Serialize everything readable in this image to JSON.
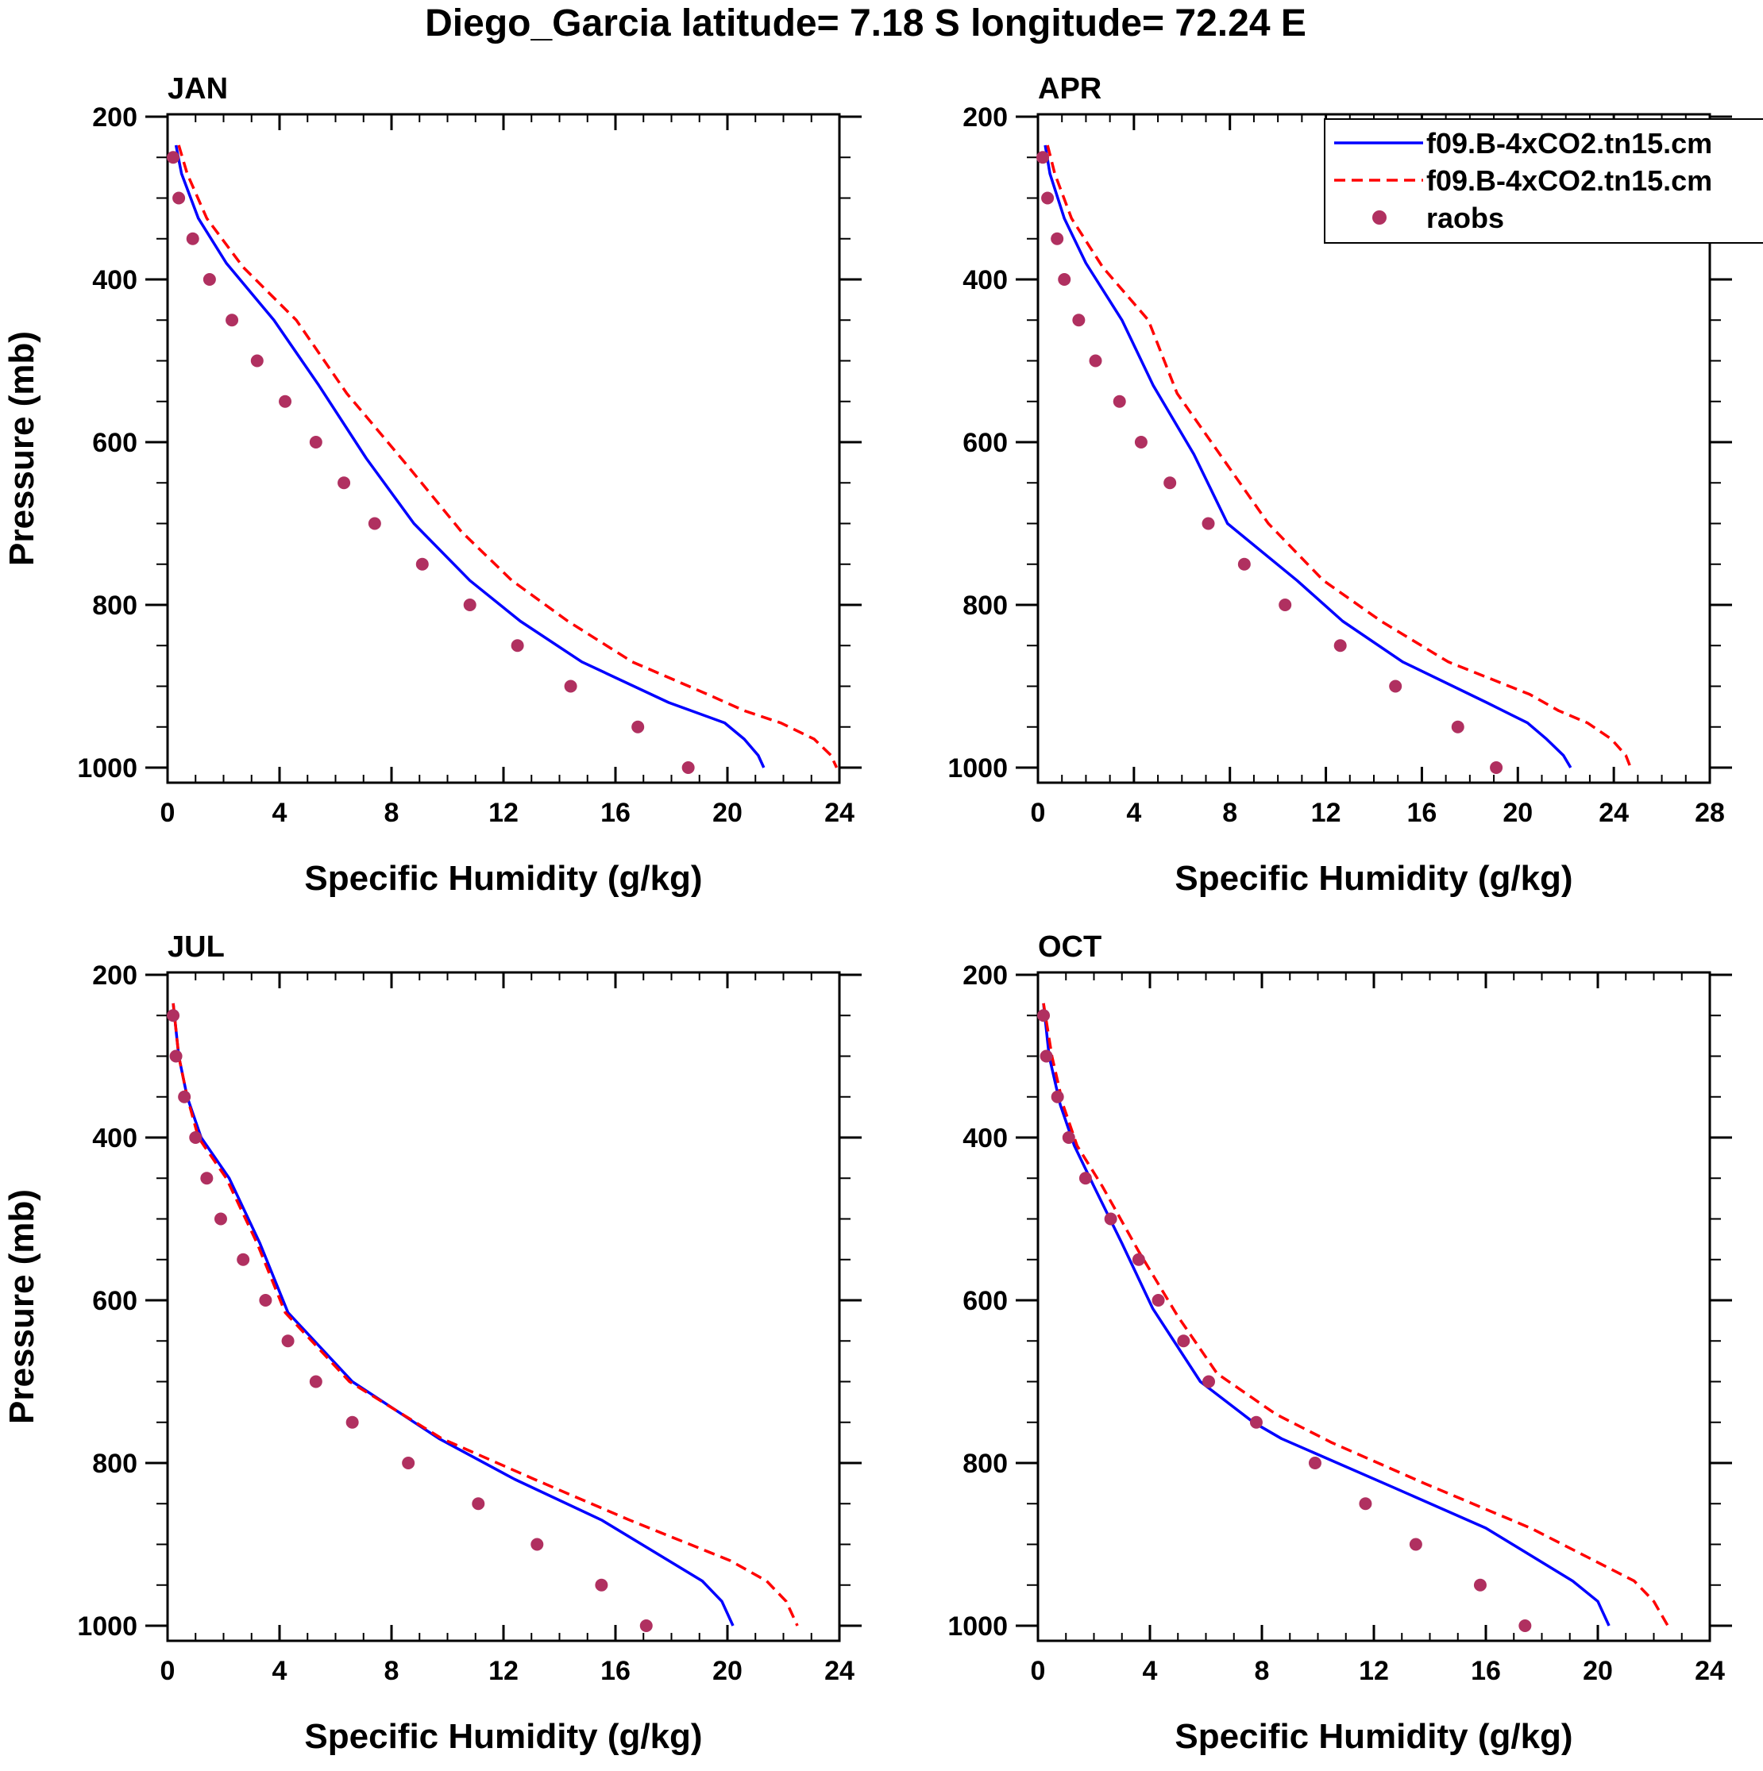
{
  "figure": {
    "title": "Diego_Garcia  latitude= 7.18 S longitude= 72.24 E"
  },
  "legend": {
    "entries": [
      {
        "label": "f09.B-4xCO2.tn15.cm",
        "color": "#0000ff",
        "style": "solid"
      },
      {
        "label": "f09.B-4xCO2.tn15.cm",
        "color": "#ff0000",
        "style": "dashed"
      },
      {
        "label": "raobs",
        "color": "#b03060",
        "style": "marker"
      }
    ]
  },
  "chart_data": [
    {
      "type": "line",
      "title": "JAN",
      "xlabel": "Specific Humidity (g/kg)",
      "ylabel": "Pressure (mb)",
      "xlim": [
        0,
        24
      ],
      "xticks": [
        "0",
        "4",
        "8",
        "12",
        "16",
        "20",
        "24"
      ],
      "ylim": [
        200,
        1000
      ],
      "yticks": [
        "200",
        "400",
        "600",
        "800",
        "1000"
      ],
      "series": [
        {
          "name": "f09.B-4xCO2.tn15.cm",
          "color": "#0000ff",
          "style": "solid",
          "x": [
            0.3,
            0.5,
            1.1,
            2.1,
            3.8,
            5.4,
            7.1,
            8.8,
            10.8,
            12.6,
            14.8,
            17.9,
            19.9,
            20.6,
            21.1,
            21.3
          ],
          "y": [
            235,
            270,
            325,
            380,
            450,
            530,
            620,
            700,
            770,
            820,
            870,
            920,
            945,
            965,
            985,
            1000
          ]
        },
        {
          "name": "f09.B-4xCO2.tn15.cm",
          "color": "#ff0000",
          "style": "dashed",
          "x": [
            0.4,
            0.7,
            1.4,
            2.7,
            4.6,
            6.4,
            8.6,
            10.5,
            12.3,
            14.3,
            16.6,
            19.3,
            20.6,
            21.9,
            23.1,
            23.7,
            23.9
          ],
          "y": [
            235,
            270,
            325,
            385,
            450,
            540,
            630,
            710,
            770,
            820,
            870,
            910,
            930,
            945,
            965,
            985,
            1000
          ]
        },
        {
          "name": "raobs",
          "color": "#b03060",
          "style": "marker",
          "x": [
            0.2,
            0.4,
            0.9,
            1.5,
            2.3,
            3.2,
            4.2,
            5.3,
            6.3,
            7.4,
            9.1,
            10.8,
            12.5,
            14.4,
            16.8,
            18.6
          ],
          "y": [
            250,
            300,
            350,
            400,
            450,
            500,
            550,
            600,
            650,
            700,
            750,
            800,
            850,
            900,
            950,
            1000
          ]
        }
      ]
    },
    {
      "type": "line",
      "title": "APR",
      "xlabel": "Specific Humidity (g/kg)",
      "ylabel": "",
      "xlim": [
        0,
        28
      ],
      "xticks": [
        "0",
        "4",
        "8",
        "12",
        "16",
        "20",
        "24",
        "28"
      ],
      "ylim": [
        200,
        1000
      ],
      "yticks": [
        "200",
        "400",
        "600",
        "800",
        "1000"
      ],
      "series": [
        {
          "name": "f09.B-4xCO2.tn15.cm",
          "color": "#0000ff",
          "style": "solid",
          "x": [
            0.3,
            0.5,
            1.1,
            2.0,
            3.5,
            4.8,
            6.5,
            7.9,
            10.8,
            12.7,
            15.2,
            18.7,
            20.4,
            21.2,
            21.9,
            22.2
          ],
          "y": [
            235,
            270,
            325,
            380,
            450,
            530,
            615,
            700,
            770,
            820,
            870,
            920,
            945,
            965,
            985,
            1000
          ]
        },
        {
          "name": "f09.B-4xCO2.tn15.cm",
          "color": "#ff0000",
          "style": "dashed",
          "x": [
            0.4,
            0.7,
            1.4,
            2.7,
            4.6,
            5.8,
            7.7,
            9.6,
            11.9,
            14.3,
            17.1,
            20.5,
            21.7,
            22.9,
            23.9,
            24.5,
            24.7
          ],
          "y": [
            235,
            270,
            325,
            385,
            450,
            540,
            620,
            700,
            770,
            820,
            870,
            910,
            930,
            945,
            965,
            985,
            1000
          ]
        },
        {
          "name": "raobs",
          "color": "#b03060",
          "style": "marker",
          "x": [
            0.2,
            0.4,
            0.8,
            1.1,
            1.7,
            2.4,
            3.4,
            4.3,
            5.5,
            7.1,
            8.6,
            10.3,
            12.6,
            14.9,
            17.5,
            19.1
          ],
          "y": [
            250,
            300,
            350,
            400,
            450,
            500,
            550,
            600,
            650,
            700,
            750,
            800,
            850,
            900,
            950,
            1000
          ]
        }
      ]
    },
    {
      "type": "line",
      "title": "JUL",
      "xlabel": "Specific Humidity (g/kg)",
      "ylabel": "Pressure (mb)",
      "xlim": [
        0,
        24
      ],
      "xticks": [
        "0",
        "4",
        "8",
        "12",
        "16",
        "20",
        "24"
      ],
      "ylim": [
        200,
        1000
      ],
      "yticks": [
        "200",
        "400",
        "600",
        "800",
        "1000"
      ],
      "series": [
        {
          "name": "f09.B-4xCO2.tn15.cm",
          "color": "#0000ff",
          "style": "solid",
          "x": [
            0.2,
            0.4,
            0.7,
            1.2,
            2.2,
            3.3,
            4.3,
            6.6,
            9.7,
            12.4,
            15.5,
            17.9,
            19.1,
            19.8,
            20.2
          ],
          "y": [
            235,
            300,
            350,
            400,
            450,
            530,
            615,
            700,
            770,
            820,
            870,
            920,
            945,
            970,
            1000
          ]
        },
        {
          "name": "f09.B-4xCO2.tn15.cm",
          "color": "#ff0000",
          "style": "dashed",
          "x": [
            0.2,
            0.4,
            0.7,
            1.1,
            2.1,
            3.2,
            4.2,
            6.5,
            9.8,
            13.1,
            16.5,
            20.1,
            21.4,
            22.1,
            22.5
          ],
          "y": [
            235,
            300,
            350,
            400,
            450,
            530,
            615,
            700,
            770,
            820,
            870,
            920,
            945,
            970,
            1000
          ]
        },
        {
          "name": "raobs",
          "color": "#b03060",
          "style": "marker",
          "x": [
            0.2,
            0.3,
            0.6,
            1.0,
            1.4,
            1.9,
            2.7,
            3.5,
            4.3,
            5.3,
            6.6,
            8.6,
            11.1,
            13.2,
            15.5,
            17.1
          ],
          "y": [
            250,
            300,
            350,
            400,
            450,
            500,
            550,
            600,
            650,
            700,
            750,
            800,
            850,
            900,
            950,
            1000
          ]
        }
      ]
    },
    {
      "type": "line",
      "title": "OCT",
      "xlabel": "Specific Humidity (g/kg)",
      "ylabel": "",
      "xlim": [
        0,
        24
      ],
      "xticks": [
        "0",
        "4",
        "8",
        "12",
        "16",
        "20",
        "24"
      ],
      "ylim": [
        200,
        1000
      ],
      "yticks": [
        "200",
        "400",
        "600",
        "800",
        "1000"
      ],
      "series": [
        {
          "name": "f09.B-4xCO2.tn15.cm",
          "color": "#0000ff",
          "style": "solid",
          "x": [
            0.2,
            0.4,
            0.8,
            1.3,
            2.0,
            3.0,
            4.1,
            5.8,
            7.7,
            8.7,
            12.7,
            16.0,
            19.1,
            20.0,
            20.4
          ],
          "y": [
            235,
            300,
            360,
            410,
            460,
            530,
            610,
            700,
            750,
            770,
            830,
            880,
            945,
            970,
            1000
          ]
        },
        {
          "name": "f09.B-4xCO2.tn15.cm",
          "color": "#ff0000",
          "style": "dashed",
          "x": [
            0.2,
            0.5,
            0.9,
            1.4,
            2.3,
            3.6,
            5.0,
            6.4,
            8.5,
            10.5,
            13.8,
            17.6,
            21.3,
            22.0,
            22.5
          ],
          "y": [
            235,
            300,
            360,
            410,
            460,
            540,
            620,
            690,
            740,
            775,
            825,
            880,
            945,
            970,
            1000
          ]
        },
        {
          "name": "raobs",
          "color": "#b03060",
          "style": "marker",
          "x": [
            0.2,
            0.3,
            0.7,
            1.1,
            1.7,
            2.6,
            3.6,
            4.3,
            5.2,
            6.1,
            7.8,
            9.9,
            11.7,
            13.5,
            15.8,
            17.4
          ],
          "y": [
            250,
            300,
            350,
            400,
            450,
            500,
            550,
            600,
            650,
            700,
            750,
            800,
            850,
            900,
            950,
            1000
          ]
        }
      ]
    }
  ]
}
